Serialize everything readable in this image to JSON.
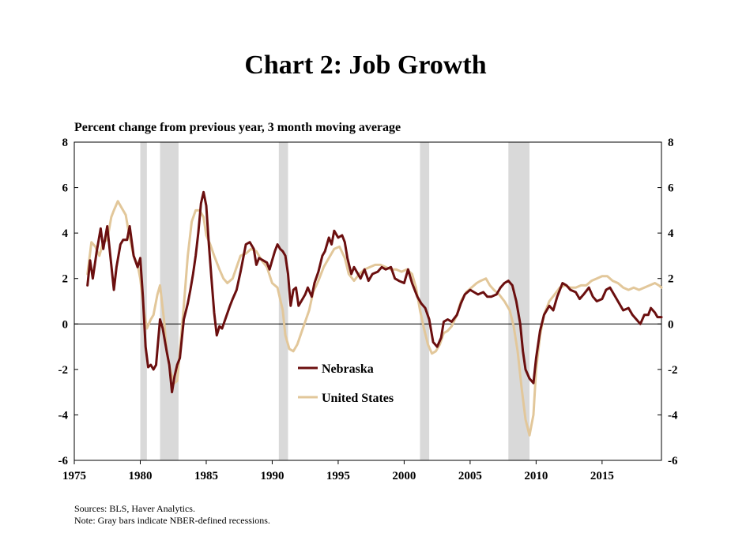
{
  "page": {
    "title": "Chart 2: Job Growth",
    "subtitle": "Percent change from previous year, 3 month moving average",
    "sources": "Sources: BLS, Haver Analytics.",
    "note": "Note: Gray bars indicate NBER-defined recessions."
  },
  "chart_data": {
    "type": "line",
    "title": "Chart 2: Job Growth",
    "subtitle": "Percent change from previous year, 3 month moving average",
    "xlim": [
      1975,
      2019.5
    ],
    "ylim": [
      -6,
      8
    ],
    "x_ticks": [
      1975,
      1980,
      1985,
      1990,
      1995,
      2000,
      2005,
      2010,
      2015
    ],
    "y_ticks": [
      -6,
      -4,
      -2,
      0,
      2,
      4,
      6,
      8
    ],
    "legend_position": "center",
    "recessions": [
      [
        1980.0,
        1980.5
      ],
      [
        1981.5,
        1982.9
      ],
      [
        1990.5,
        1991.2
      ],
      [
        2001.2,
        2001.9
      ],
      [
        2007.9,
        2009.5
      ]
    ],
    "series": [
      {
        "name": "Nebraska",
        "color": "#6b0f0f",
        "points": [
          [
            1976.0,
            1.7
          ],
          [
            1976.2,
            2.8
          ],
          [
            1976.4,
            2.0
          ],
          [
            1976.7,
            3.2
          ],
          [
            1977.0,
            4.2
          ],
          [
            1977.2,
            3.3
          ],
          [
            1977.5,
            4.3
          ],
          [
            1977.8,
            2.6
          ],
          [
            1978.0,
            1.5
          ],
          [
            1978.2,
            2.5
          ],
          [
            1978.5,
            3.5
          ],
          [
            1978.7,
            3.7
          ],
          [
            1979.0,
            3.7
          ],
          [
            1979.2,
            4.3
          ],
          [
            1979.5,
            3.0
          ],
          [
            1979.8,
            2.5
          ],
          [
            1980.0,
            2.9
          ],
          [
            1980.2,
            1.2
          ],
          [
            1980.4,
            -1.0
          ],
          [
            1980.6,
            -1.9
          ],
          [
            1980.8,
            -1.8
          ],
          [
            1981.0,
            -2.0
          ],
          [
            1981.2,
            -1.8
          ],
          [
            1981.5,
            0.2
          ],
          [
            1981.7,
            -0.2
          ],
          [
            1982.0,
            -1.2
          ],
          [
            1982.2,
            -1.8
          ],
          [
            1982.4,
            -3.0
          ],
          [
            1982.6,
            -2.3
          ],
          [
            1982.8,
            -1.8
          ],
          [
            1983.0,
            -1.5
          ],
          [
            1983.3,
            0.2
          ],
          [
            1983.6,
            0.9
          ],
          [
            1983.8,
            1.5
          ],
          [
            1984.0,
            2.2
          ],
          [
            1984.2,
            3.0
          ],
          [
            1984.4,
            4.0
          ],
          [
            1984.6,
            5.3
          ],
          [
            1984.8,
            5.8
          ],
          [
            1985.0,
            5.2
          ],
          [
            1985.2,
            3.5
          ],
          [
            1985.4,
            2.0
          ],
          [
            1985.6,
            0.5
          ],
          [
            1985.8,
            -0.5
          ],
          [
            1986.0,
            -0.1
          ],
          [
            1986.2,
            -0.2
          ],
          [
            1986.5,
            0.3
          ],
          [
            1986.8,
            0.8
          ],
          [
            1987.0,
            1.1
          ],
          [
            1987.3,
            1.5
          ],
          [
            1987.6,
            2.3
          ],
          [
            1988.0,
            3.5
          ],
          [
            1988.3,
            3.6
          ],
          [
            1988.6,
            3.3
          ],
          [
            1988.8,
            2.6
          ],
          [
            1989.0,
            2.9
          ],
          [
            1989.3,
            2.8
          ],
          [
            1989.6,
            2.7
          ],
          [
            1989.8,
            2.4
          ],
          [
            1990.0,
            2.8
          ],
          [
            1990.2,
            3.2
          ],
          [
            1990.4,
            3.5
          ],
          [
            1990.6,
            3.3
          ],
          [
            1990.8,
            3.2
          ],
          [
            1991.0,
            3.0
          ],
          [
            1991.2,
            2.2
          ],
          [
            1991.4,
            0.8
          ],
          [
            1991.6,
            1.5
          ],
          [
            1991.8,
            1.6
          ],
          [
            1992.0,
            0.8
          ],
          [
            1992.2,
            1.0
          ],
          [
            1992.5,
            1.3
          ],
          [
            1992.7,
            1.6
          ],
          [
            1993.0,
            1.2
          ],
          [
            1993.2,
            1.8
          ],
          [
            1993.5,
            2.3
          ],
          [
            1993.8,
            3.0
          ],
          [
            1994.0,
            3.2
          ],
          [
            1994.3,
            3.8
          ],
          [
            1994.5,
            3.5
          ],
          [
            1994.7,
            4.1
          ],
          [
            1995.0,
            3.8
          ],
          [
            1995.3,
            3.9
          ],
          [
            1995.5,
            3.6
          ],
          [
            1995.7,
            2.9
          ],
          [
            1996.0,
            2.2
          ],
          [
            1996.2,
            2.5
          ],
          [
            1996.5,
            2.2
          ],
          [
            1996.7,
            2.0
          ],
          [
            1997.0,
            2.4
          ],
          [
            1997.3,
            1.9
          ],
          [
            1997.6,
            2.2
          ],
          [
            1998.0,
            2.3
          ],
          [
            1998.3,
            2.5
          ],
          [
            1998.6,
            2.4
          ],
          [
            1999.0,
            2.5
          ],
          [
            1999.3,
            2.0
          ],
          [
            1999.6,
            1.9
          ],
          [
            2000.0,
            1.8
          ],
          [
            2000.3,
            2.4
          ],
          [
            2000.6,
            1.8
          ],
          [
            2001.0,
            1.2
          ],
          [
            2001.3,
            0.9
          ],
          [
            2001.6,
            0.7
          ],
          [
            2001.9,
            0.2
          ],
          [
            2002.2,
            -0.8
          ],
          [
            2002.5,
            -1.0
          ],
          [
            2002.8,
            -0.6
          ],
          [
            2003.0,
            0.1
          ],
          [
            2003.3,
            0.2
          ],
          [
            2003.6,
            0.1
          ],
          [
            2004.0,
            0.4
          ],
          [
            2004.3,
            0.9
          ],
          [
            2004.6,
            1.3
          ],
          [
            2005.0,
            1.5
          ],
          [
            2005.3,
            1.4
          ],
          [
            2005.6,
            1.3
          ],
          [
            2006.0,
            1.4
          ],
          [
            2006.3,
            1.2
          ],
          [
            2006.6,
            1.2
          ],
          [
            2007.0,
            1.3
          ],
          [
            2007.3,
            1.6
          ],
          [
            2007.6,
            1.8
          ],
          [
            2007.9,
            1.9
          ],
          [
            2008.2,
            1.7
          ],
          [
            2008.5,
            1.0
          ],
          [
            2008.8,
            0.0
          ],
          [
            2009.0,
            -1.2
          ],
          [
            2009.2,
            -2.0
          ],
          [
            2009.5,
            -2.4
          ],
          [
            2009.8,
            -2.6
          ],
          [
            2010.0,
            -1.5
          ],
          [
            2010.3,
            -0.3
          ],
          [
            2010.6,
            0.4
          ],
          [
            2011.0,
            0.8
          ],
          [
            2011.3,
            0.6
          ],
          [
            2011.6,
            1.2
          ],
          [
            2012.0,
            1.8
          ],
          [
            2012.3,
            1.7
          ],
          [
            2012.6,
            1.5
          ],
          [
            2013.0,
            1.4
          ],
          [
            2013.3,
            1.1
          ],
          [
            2013.6,
            1.3
          ],
          [
            2014.0,
            1.6
          ],
          [
            2014.3,
            1.2
          ],
          [
            2014.6,
            1.0
          ],
          [
            2015.0,
            1.1
          ],
          [
            2015.3,
            1.5
          ],
          [
            2015.6,
            1.6
          ],
          [
            2016.0,
            1.2
          ],
          [
            2016.3,
            0.9
          ],
          [
            2016.6,
            0.6
          ],
          [
            2017.0,
            0.7
          ],
          [
            2017.3,
            0.4
          ],
          [
            2017.6,
            0.2
          ],
          [
            2017.9,
            0.0
          ],
          [
            2018.2,
            0.4
          ],
          [
            2018.5,
            0.4
          ],
          [
            2018.7,
            0.7
          ],
          [
            2019.0,
            0.5
          ],
          [
            2019.2,
            0.3
          ],
          [
            2019.5,
            0.3
          ]
        ]
      },
      {
        "name": "United States",
        "color": "#e2c79a",
        "points": [
          [
            1976.0,
            2.2
          ],
          [
            1976.3,
            3.6
          ],
          [
            1976.6,
            3.4
          ],
          [
            1976.9,
            3.0
          ],
          [
            1977.2,
            3.6
          ],
          [
            1977.5,
            3.7
          ],
          [
            1977.8,
            4.7
          ],
          [
            1978.0,
            5.0
          ],
          [
            1978.3,
            5.4
          ],
          [
            1978.6,
            5.1
          ],
          [
            1978.9,
            4.8
          ],
          [
            1979.2,
            3.8
          ],
          [
            1979.5,
            3.0
          ],
          [
            1979.8,
            2.6
          ],
          [
            1980.0,
            2.0
          ],
          [
            1980.3,
            0.5
          ],
          [
            1980.5,
            -0.2
          ],
          [
            1980.8,
            0.2
          ],
          [
            1981.0,
            0.4
          ],
          [
            1981.3,
            1.3
          ],
          [
            1981.5,
            1.7
          ],
          [
            1981.8,
            0.2
          ],
          [
            1982.0,
            -1.2
          ],
          [
            1982.3,
            -2.1
          ],
          [
            1982.6,
            -2.6
          ],
          [
            1982.8,
            -2.5
          ],
          [
            1983.0,
            -1.2
          ],
          [
            1983.3,
            0.8
          ],
          [
            1983.6,
            3.0
          ],
          [
            1983.9,
            4.5
          ],
          [
            1984.2,
            5.0
          ],
          [
            1984.5,
            5.0
          ],
          [
            1984.8,
            4.7
          ],
          [
            1985.0,
            3.9
          ],
          [
            1985.3,
            3.5
          ],
          [
            1985.6,
            3.0
          ],
          [
            1986.0,
            2.4
          ],
          [
            1986.3,
            2.0
          ],
          [
            1986.6,
            1.8
          ],
          [
            1987.0,
            2.0
          ],
          [
            1987.3,
            2.5
          ],
          [
            1987.6,
            3.0
          ],
          [
            1988.0,
            3.1
          ],
          [
            1988.4,
            3.3
          ],
          [
            1988.8,
            3.2
          ],
          [
            1989.2,
            2.8
          ],
          [
            1989.6,
            2.5
          ],
          [
            1990.0,
            1.8
          ],
          [
            1990.4,
            1.6
          ],
          [
            1990.8,
            0.6
          ],
          [
            1991.0,
            -0.5
          ],
          [
            1991.3,
            -1.1
          ],
          [
            1991.6,
            -1.2
          ],
          [
            1991.9,
            -0.9
          ],
          [
            1992.2,
            -0.4
          ],
          [
            1992.5,
            0.1
          ],
          [
            1992.8,
            0.6
          ],
          [
            1993.1,
            1.4
          ],
          [
            1993.5,
            1.9
          ],
          [
            1993.9,
            2.5
          ],
          [
            1994.3,
            2.9
          ],
          [
            1994.7,
            3.3
          ],
          [
            1995.1,
            3.4
          ],
          [
            1995.5,
            2.9
          ],
          [
            1995.8,
            2.2
          ],
          [
            1996.2,
            1.9
          ],
          [
            1996.6,
            2.2
          ],
          [
            1997.0,
            2.4
          ],
          [
            1997.4,
            2.5
          ],
          [
            1997.8,
            2.6
          ],
          [
            1998.2,
            2.6
          ],
          [
            1998.6,
            2.5
          ],
          [
            1999.0,
            2.4
          ],
          [
            1999.4,
            2.4
          ],
          [
            1999.8,
            2.3
          ],
          [
            2000.2,
            2.4
          ],
          [
            2000.6,
            2.2
          ],
          [
            2000.9,
            1.6
          ],
          [
            2001.2,
            0.6
          ],
          [
            2001.5,
            -0.2
          ],
          [
            2001.8,
            -0.9
          ],
          [
            2002.1,
            -1.3
          ],
          [
            2002.4,
            -1.2
          ],
          [
            2002.7,
            -0.9
          ],
          [
            2003.0,
            -0.4
          ],
          [
            2003.3,
            -0.3
          ],
          [
            2003.6,
            -0.1
          ],
          [
            2004.0,
            0.4
          ],
          [
            2004.3,
            1.0
          ],
          [
            2004.7,
            1.4
          ],
          [
            2005.1,
            1.6
          ],
          [
            2005.5,
            1.8
          ],
          [
            2005.8,
            1.9
          ],
          [
            2006.2,
            2.0
          ],
          [
            2006.5,
            1.7
          ],
          [
            2006.8,
            1.5
          ],
          [
            2007.2,
            1.3
          ],
          [
            2007.6,
            1.0
          ],
          [
            2008.0,
            0.6
          ],
          [
            2008.3,
            -0.1
          ],
          [
            2008.6,
            -1.2
          ],
          [
            2008.9,
            -2.8
          ],
          [
            2009.2,
            -4.2
          ],
          [
            2009.5,
            -4.9
          ],
          [
            2009.8,
            -4.0
          ],
          [
            2010.0,
            -2.0
          ],
          [
            2010.3,
            -0.5
          ],
          [
            2010.6,
            0.4
          ],
          [
            2011.0,
            1.0
          ],
          [
            2011.4,
            1.3
          ],
          [
            2011.8,
            1.6
          ],
          [
            2012.2,
            1.7
          ],
          [
            2012.6,
            1.6
          ],
          [
            2013.0,
            1.6
          ],
          [
            2013.4,
            1.7
          ],
          [
            2013.8,
            1.7
          ],
          [
            2014.2,
            1.9
          ],
          [
            2014.6,
            2.0
          ],
          [
            2015.0,
            2.1
          ],
          [
            2015.4,
            2.1
          ],
          [
            2015.8,
            1.9
          ],
          [
            2016.2,
            1.8
          ],
          [
            2016.6,
            1.6
          ],
          [
            2017.0,
            1.5
          ],
          [
            2017.4,
            1.6
          ],
          [
            2017.8,
            1.5
          ],
          [
            2018.2,
            1.6
          ],
          [
            2018.6,
            1.7
          ],
          [
            2019.0,
            1.8
          ],
          [
            2019.3,
            1.7
          ],
          [
            2019.5,
            1.6
          ]
        ]
      }
    ]
  }
}
